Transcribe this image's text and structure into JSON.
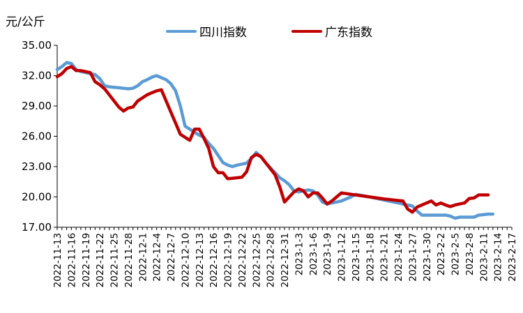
{
  "chart_data": {
    "type": "line",
    "title": "",
    "unit_label": "元/公斤",
    "xlabel": "",
    "ylabel": "元/公斤",
    "ylim": [
      17.0,
      35.0
    ],
    "y_ticks": [
      "17.00",
      "20.00",
      "23.00",
      "26.00",
      "29.00",
      "32.00",
      "35.00"
    ],
    "x_tick_labels": [
      "2022-11-13",
      "2022-11-16",
      "2022-11-19",
      "2022-11-22",
      "2022-11-25",
      "2022-11-28",
      "2022-12-1",
      "2022-12-4",
      "2022-12-7",
      "2022-12-10",
      "2022-12-13",
      "2022-12-16",
      "2022-12-19",
      "2022-12-22",
      "2022-12-25",
      "2022-12-28",
      "2022-12-31",
      "2023-1-3",
      "2023-1-6",
      "2023-1-9",
      "2023-1-12",
      "2023-1-15",
      "2023-1-18",
      "2023-1-21",
      "2023-1-24",
      "2023-1-27",
      "2023-1-30",
      "2023-2-2",
      "2023-2-5",
      "2023-2-8",
      "2023-2-11",
      "2023-2-14",
      "2023-2-17"
    ],
    "legend_position": "top",
    "grid": false,
    "series": [
      {
        "name": "四川指数",
        "color": "#5b9bd5",
        "points": [
          [
            "2022-11-13",
            32.6
          ],
          [
            "2022-11-14",
            32.9
          ],
          [
            "2022-11-15",
            33.3
          ],
          [
            "2022-11-16",
            33.2
          ],
          [
            "2022-11-17",
            32.6
          ],
          [
            "2022-11-18",
            32.4
          ],
          [
            "2022-11-19",
            32.3
          ],
          [
            "2022-11-20",
            32.2
          ],
          [
            "2022-11-21",
            32.1
          ],
          [
            "2022-11-22",
            31.7
          ],
          [
            "2022-11-23",
            31.0
          ],
          [
            "2022-11-24",
            30.9
          ],
          [
            "2022-11-25",
            30.85
          ],
          [
            "2022-11-26",
            30.8
          ],
          [
            "2022-11-27",
            30.75
          ],
          [
            "2022-11-28",
            30.7
          ],
          [
            "2022-11-29",
            30.75
          ],
          [
            "2022-11-30",
            31.0
          ],
          [
            "2022-12-1",
            31.4
          ],
          [
            "2022-12-2",
            31.6
          ],
          [
            "2022-12-3",
            31.85
          ],
          [
            "2022-12-4",
            32.0
          ],
          [
            "2022-12-5",
            31.8
          ],
          [
            "2022-12-6",
            31.6
          ],
          [
            "2022-12-7",
            31.2
          ],
          [
            "2022-12-8",
            30.5
          ],
          [
            "2022-12-9",
            29.0
          ],
          [
            "2022-12-10",
            27.0
          ],
          [
            "2022-12-11",
            26.7
          ],
          [
            "2022-12-12",
            26.4
          ],
          [
            "2022-12-13",
            26.1
          ],
          [
            "2022-12-14",
            25.9
          ],
          [
            "2022-12-15",
            25.3
          ],
          [
            "2022-12-16",
            24.8
          ],
          [
            "2022-12-17",
            24.1
          ],
          [
            "2022-12-18",
            23.4
          ],
          [
            "2022-12-19",
            23.15
          ],
          [
            "2022-12-20",
            23.0
          ],
          [
            "2022-12-21",
            23.15
          ],
          [
            "2022-12-22",
            23.25
          ],
          [
            "2022-12-23",
            23.35
          ],
          [
            "2022-12-24",
            23.8
          ],
          [
            "2022-12-25",
            24.4
          ],
          [
            "2022-12-26",
            24.0
          ],
          [
            "2022-12-27",
            23.4
          ],
          [
            "2022-12-28",
            22.9
          ],
          [
            "2022-12-29",
            22.4
          ],
          [
            "2022-12-30",
            21.9
          ],
          [
            "2022-12-31",
            21.6
          ],
          [
            "2023-1-1",
            21.2
          ],
          [
            "2023-1-2",
            20.6
          ],
          [
            "2023-1-3",
            20.5
          ],
          [
            "2023-1-4",
            20.6
          ],
          [
            "2023-1-5",
            20.7
          ],
          [
            "2023-1-6",
            20.6
          ],
          [
            "2023-1-7",
            20.2
          ],
          [
            "2023-1-8",
            19.5
          ],
          [
            "2023-1-9",
            19.3
          ],
          [
            "2023-1-10",
            19.4
          ],
          [
            "2023-1-11",
            19.5
          ],
          [
            "2023-1-12",
            19.6
          ],
          [
            "2023-1-13",
            19.8
          ],
          [
            "2023-1-14",
            20.0
          ],
          [
            "2023-1-15",
            20.25
          ],
          [
            "2023-1-18",
            20.0
          ],
          [
            "2023-1-21",
            19.7
          ],
          [
            "2023-1-24",
            19.4
          ],
          [
            "2023-1-27",
            19.1
          ],
          [
            "2023-1-28",
            18.6
          ],
          [
            "2023-1-29",
            18.2
          ],
          [
            "2023-1-30",
            18.2
          ],
          [
            "2023-1-31",
            18.2
          ],
          [
            "2023-2-1",
            18.2
          ],
          [
            "2023-2-2",
            18.2
          ],
          [
            "2023-2-3",
            18.2
          ],
          [
            "2023-2-4",
            18.1
          ],
          [
            "2023-2-5",
            17.9
          ],
          [
            "2023-2-6",
            18.0
          ],
          [
            "2023-2-7",
            18.0
          ],
          [
            "2023-2-8",
            18.0
          ],
          [
            "2023-2-9",
            18.0
          ],
          [
            "2023-2-10",
            18.2
          ],
          [
            "2023-2-11",
            18.25
          ],
          [
            "2023-2-12",
            18.3
          ],
          [
            "2023-2-13",
            18.3
          ]
        ]
      },
      {
        "name": "广东指数",
        "color": "#c00000",
        "points": [
          [
            "2022-11-13",
            31.9
          ],
          [
            "2022-11-14",
            32.2
          ],
          [
            "2022-11-15",
            32.7
          ],
          [
            "2022-11-16",
            32.9
          ],
          [
            "2022-11-17",
            32.5
          ],
          [
            "2022-11-18",
            32.5
          ],
          [
            "2022-11-19",
            32.4
          ],
          [
            "2022-11-20",
            32.3
          ],
          [
            "2022-11-21",
            31.4
          ],
          [
            "2022-11-22",
            31.1
          ],
          [
            "2022-11-23",
            30.7
          ],
          [
            "2022-11-24",
            30.1
          ],
          [
            "2022-11-25",
            29.5
          ],
          [
            "2022-11-26",
            28.9
          ],
          [
            "2022-11-27",
            28.5
          ],
          [
            "2022-11-28",
            28.8
          ],
          [
            "2022-11-29",
            28.9
          ],
          [
            "2022-11-30",
            29.5
          ],
          [
            "2022-12-1",
            29.8
          ],
          [
            "2022-12-2",
            30.1
          ],
          [
            "2022-12-3",
            30.3
          ],
          [
            "2022-12-4",
            30.5
          ],
          [
            "2022-12-5",
            30.6
          ],
          [
            "2022-12-6",
            29.5
          ],
          [
            "2022-12-7",
            28.4
          ],
          [
            "2022-12-8",
            27.3
          ],
          [
            "2022-12-9",
            26.2
          ],
          [
            "2022-12-10",
            25.9
          ],
          [
            "2022-12-11",
            25.6
          ],
          [
            "2022-12-12",
            26.7
          ],
          [
            "2022-12-13",
            26.7
          ],
          [
            "2022-12-14",
            25.8
          ],
          [
            "2022-12-15",
            24.8
          ],
          [
            "2022-12-16",
            23.0
          ],
          [
            "2022-12-17",
            22.4
          ],
          [
            "2022-12-18",
            22.4
          ],
          [
            "2022-12-19",
            21.8
          ],
          [
            "2022-12-20",
            21.85
          ],
          [
            "2022-12-21",
            21.9
          ],
          [
            "2022-12-22",
            21.95
          ],
          [
            "2022-12-23",
            22.5
          ],
          [
            "2022-12-24",
            23.9
          ],
          [
            "2022-12-25",
            24.2
          ],
          [
            "2022-12-26",
            24.0
          ],
          [
            "2022-12-27",
            23.4
          ],
          [
            "2022-12-28",
            22.8
          ],
          [
            "2022-12-29",
            22.2
          ],
          [
            "2022-12-30",
            21.0
          ],
          [
            "2022-12-31",
            19.5
          ],
          [
            "2023-1-1",
            20.0
          ],
          [
            "2023-1-2",
            20.5
          ],
          [
            "2023-1-3",
            20.8
          ],
          [
            "2023-1-4",
            20.6
          ],
          [
            "2023-1-5",
            20.0
          ],
          [
            "2023-1-6",
            20.4
          ],
          [
            "2023-1-7",
            20.4
          ],
          [
            "2023-1-8",
            19.9
          ],
          [
            "2023-1-9",
            19.3
          ],
          [
            "2023-1-10",
            19.6
          ],
          [
            "2023-1-11",
            20.0
          ],
          [
            "2023-1-12",
            20.4
          ],
          [
            "2023-1-15",
            20.2
          ],
          [
            "2023-1-18",
            20.0
          ],
          [
            "2023-1-21",
            19.8
          ],
          [
            "2023-1-24",
            19.65
          ],
          [
            "2023-1-25",
            19.6
          ],
          [
            "2023-1-26",
            18.8
          ],
          [
            "2023-1-27",
            18.5
          ],
          [
            "2023-1-28",
            19.0
          ],
          [
            "2023-1-29",
            19.2
          ],
          [
            "2023-1-30",
            19.4
          ],
          [
            "2023-1-31",
            19.6
          ],
          [
            "2023-2-1",
            19.2
          ],
          [
            "2023-2-2",
            19.4
          ],
          [
            "2023-2-3",
            19.2
          ],
          [
            "2023-2-4",
            19.05
          ],
          [
            "2023-2-5",
            19.2
          ],
          [
            "2023-2-6",
            19.3
          ],
          [
            "2023-2-7",
            19.4
          ],
          [
            "2023-2-8",
            19.85
          ],
          [
            "2023-2-9",
            19.9
          ],
          [
            "2023-2-10",
            20.2
          ],
          [
            "2023-2-11",
            20.2
          ],
          [
            "2023-2-12",
            20.2
          ]
        ]
      }
    ]
  }
}
